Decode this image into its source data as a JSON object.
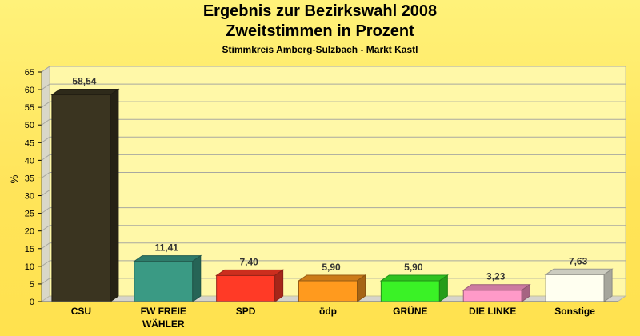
{
  "chart_data": {
    "type": "bar",
    "title": "Ergebnis zur Bezirkswahl 2008",
    "subtitle": "Zweitstimmen in Prozent",
    "subsubtitle": "Stimmkreis Amberg-Sulzbach - Markt Kastl",
    "ylabel": "%",
    "xlabel": "",
    "ylim": [
      0,
      65
    ],
    "yticks": [
      0,
      5,
      10,
      15,
      20,
      25,
      30,
      35,
      40,
      45,
      50,
      55,
      60,
      65
    ],
    "categories": [
      "CSU",
      "FW FREIE\nWÄHLER",
      "SPD",
      "ödp",
      "GRÜNE",
      "DIE LINKE",
      "Sonstige"
    ],
    "values": [
      58.54,
      11.41,
      7.4,
      5.9,
      5.9,
      3.23,
      7.63
    ],
    "value_labels": [
      "58,54",
      "11,41",
      "7,40",
      "5,90",
      "5,90",
      "3,23",
      "7,63"
    ],
    "colors": [
      "#3a3420",
      "#3a9a84",
      "#ff3a26",
      "#ff9a1e",
      "#3af226",
      "#ff9ac8",
      "#fffff0"
    ],
    "grid": true,
    "legend": "none",
    "three_d": true
  }
}
